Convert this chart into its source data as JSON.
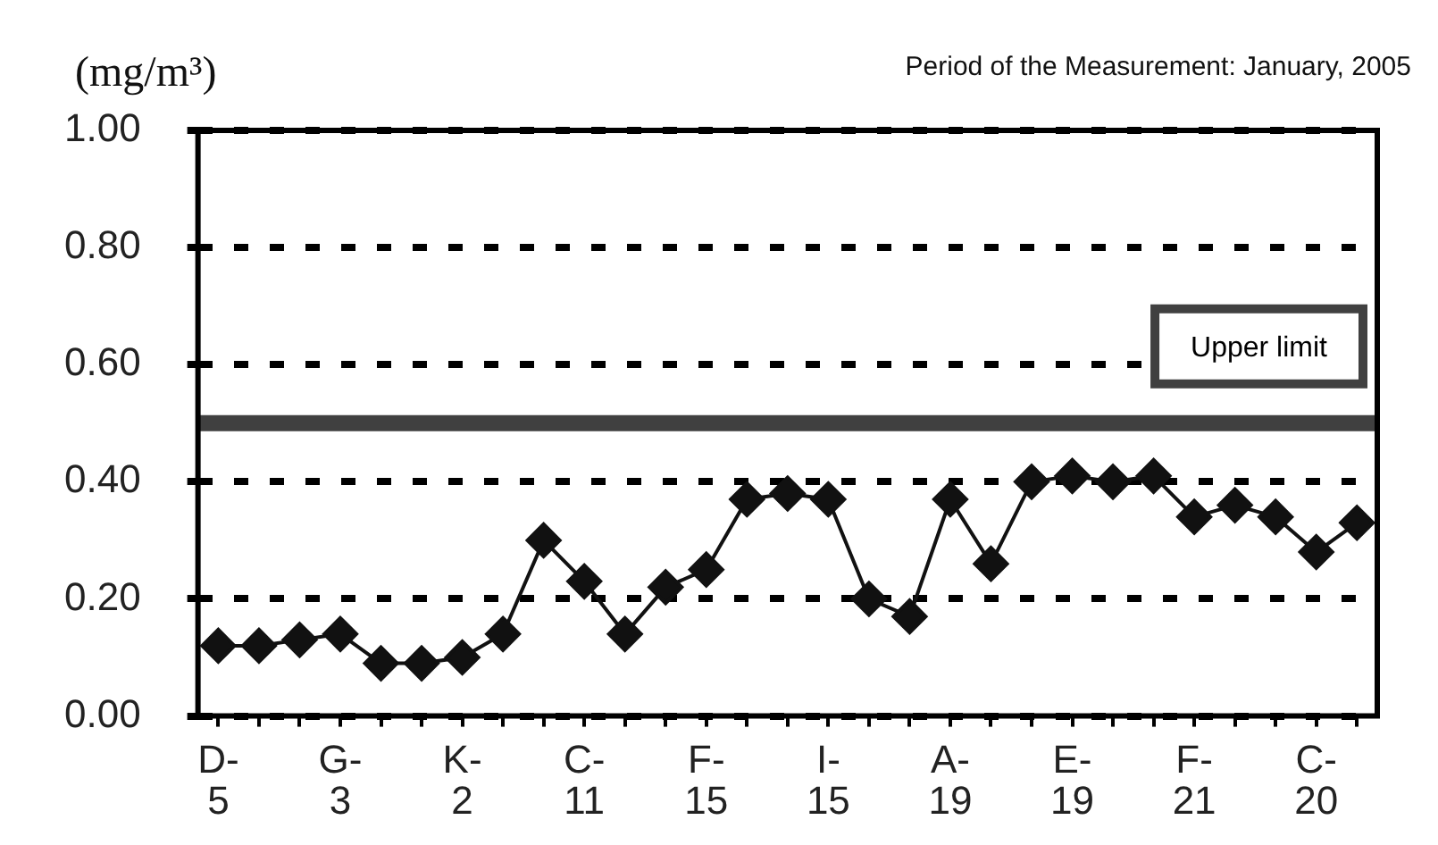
{
  "chart_data": {
    "type": "line",
    "ylabel": "(mg/m³)",
    "annotations": [
      "Period of the Measurement: January, 2005"
    ],
    "categories": [
      "D-\n5",
      null,
      null,
      "G-\n3",
      null,
      null,
      "K-\n2",
      null,
      null,
      "C-\n11",
      null,
      null,
      "F-\n15",
      null,
      null,
      "I-\n15",
      null,
      null,
      "A-\n19",
      null,
      null,
      "E-\n19",
      null,
      null,
      "F-\n21",
      null,
      null,
      "C-\n20",
      null
    ],
    "series": [
      {
        "color": "#111111",
        "values": [
          0.12,
          0.12,
          0.13,
          0.14,
          0.09,
          0.09,
          0.1,
          0.14,
          0.3,
          0.23,
          0.14,
          0.22,
          0.25,
          0.37,
          0.38,
          0.37,
          0.2,
          0.17,
          0.37,
          0.26,
          0.4,
          0.41,
          0.4,
          0.41,
          0.34,
          0.36,
          0.34,
          0.28,
          0.33
        ]
      }
    ],
    "ylim": [
      0,
      1
    ],
    "yticks": [
      {
        "value": 0,
        "label": "0.00"
      },
      {
        "value": 0.2,
        "label": "0.20"
      },
      {
        "value": 0.4,
        "label": "0.40"
      },
      {
        "value": 0.6,
        "label": "0.60"
      },
      {
        "value": 0.8,
        "label": "0.80"
      },
      {
        "value": 1,
        "label": "1.00"
      }
    ],
    "grid": "y",
    "legend": false,
    "marker": "diamond",
    "line_style": "solid",
    "ref_lines": [
      {
        "axis": "y",
        "value": 0.5,
        "label": "Upper limit",
        "color": "#404040"
      }
    ]
  }
}
